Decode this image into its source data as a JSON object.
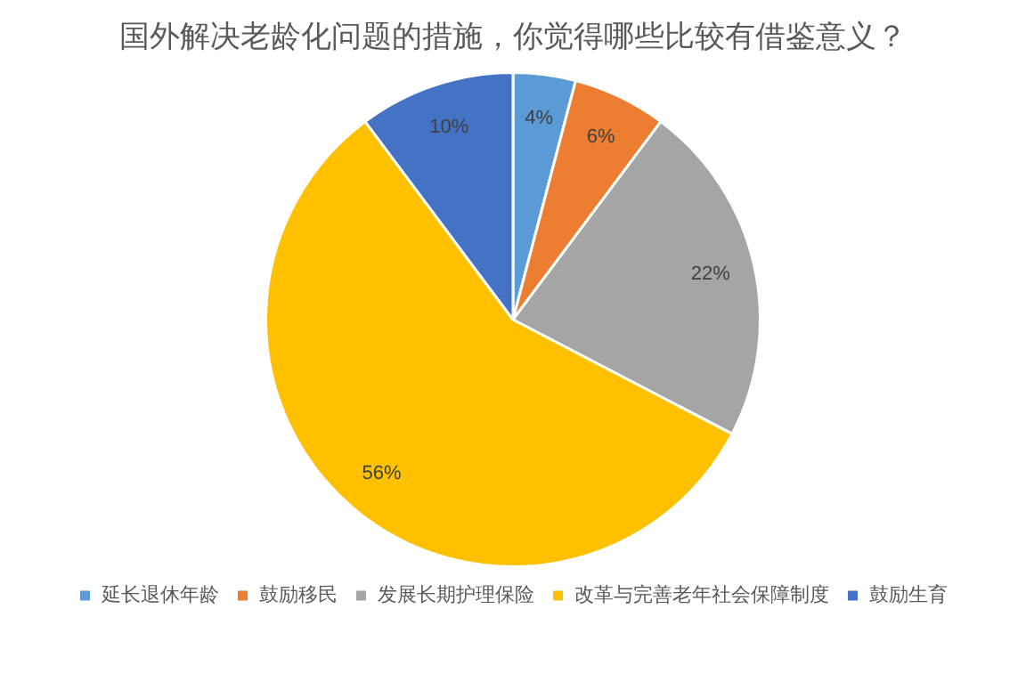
{
  "chart_data": {
    "type": "pie",
    "title": "国外解决老龄化问题的措施，你觉得哪些比较有借鉴意义？",
    "categories": [
      "延长退休年龄",
      "鼓励移民",
      "发展长期护理保险",
      "改革与完善老年社会保障制度",
      "鼓励生育"
    ],
    "values": [
      4,
      6,
      22,
      56,
      10
    ],
    "value_labels": [
      "4%",
      "6%",
      "22%",
      "56%",
      "10%"
    ],
    "colors": [
      "#5b9bd5",
      "#ed7d31",
      "#a5a5a5",
      "#ffc000",
      "#4472c4"
    ],
    "legend": "bottom"
  }
}
